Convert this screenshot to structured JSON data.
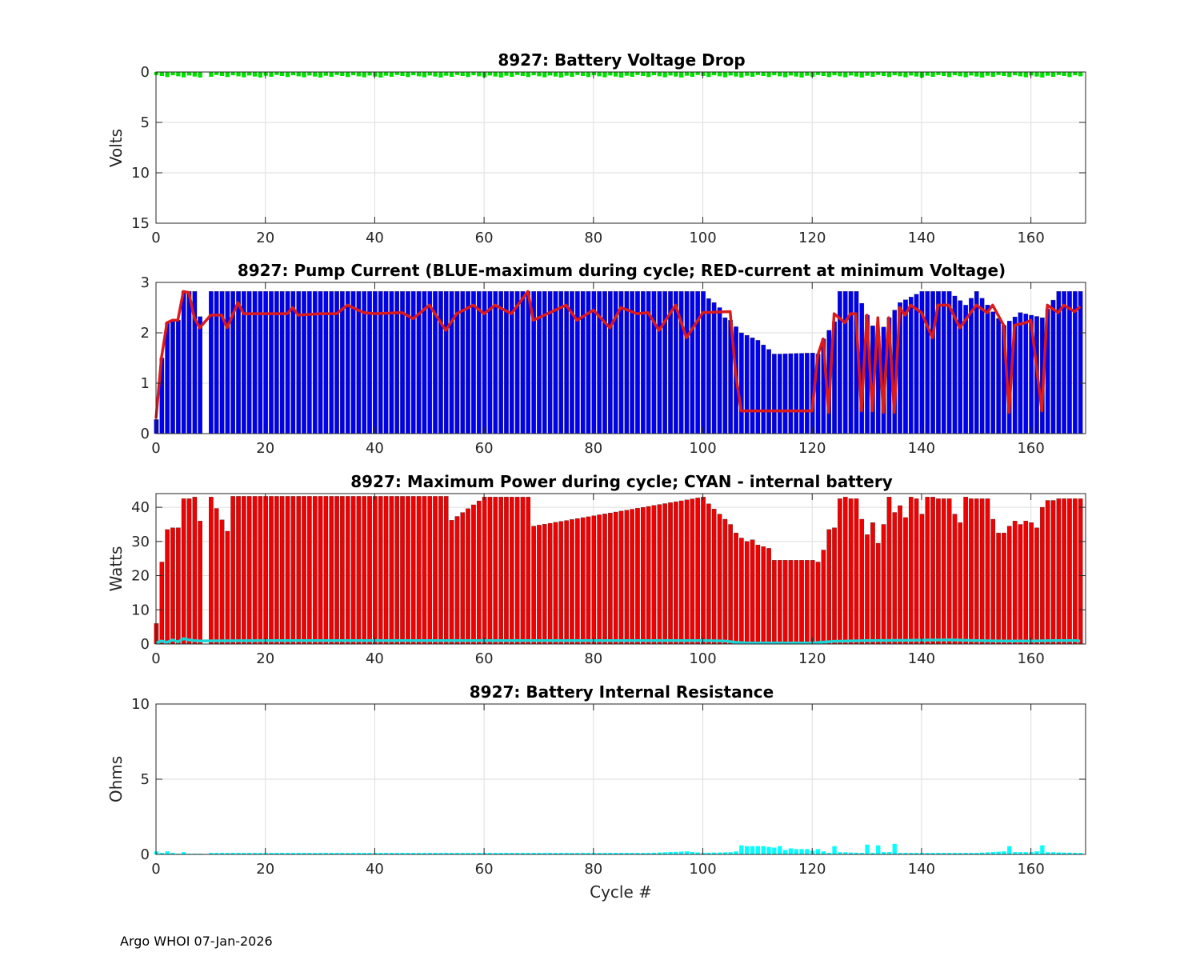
{
  "footer": "Argo WHOI 07-Jan-2026",
  "colors": {
    "green": "#00e000",
    "blue": "#0000f0",
    "red": "#f00000",
    "line_red": "#dd1a1a",
    "cyan": "#00ffff",
    "cyan_line": "#1ad6d6"
  },
  "chart_data": [
    {
      "type": "bar",
      "title": "8927: Battery Voltage Drop",
      "xlabel": "",
      "ylabel": "Volts",
      "xlim": [
        0,
        170
      ],
      "ylim": [
        0,
        15
      ],
      "y_reversed": true,
      "xticks": [
        0,
        20,
        40,
        60,
        80,
        100,
        120,
        140,
        160
      ],
      "yticks": [
        0,
        5,
        10,
        15
      ],
      "series": [
        {
          "name": "Voltage Drop",
          "color": "green",
          "x": [
            0,
            170
          ],
          "values": [
            0.35,
            0.35
          ],
          "notes": "nearly constant ~0.3-0.5 V across cycles 1-169; gap at cycle 9"
        }
      ]
    },
    {
      "type": "bar",
      "title": "8927: Pump Current (BLUE-maximum during cycle; RED-current at minimum Voltage)",
      "xlabel": "",
      "ylabel": "",
      "xlim": [
        0,
        170
      ],
      "ylim": [
        0,
        3
      ],
      "xticks": [
        0,
        20,
        40,
        60,
        80,
        100,
        120,
        140,
        160
      ],
      "yticks": [
        0,
        1,
        2,
        3
      ],
      "series": [
        {
          "name": "maximum during cycle",
          "color": "blue",
          "kind": "bar",
          "x": [
            0,
            1,
            2,
            3,
            4,
            5,
            6,
            7,
            8,
            10,
            20,
            60,
            100,
            101,
            102,
            103,
            104,
            105,
            106,
            107,
            110,
            113,
            114,
            120,
            121,
            122,
            124,
            125,
            128,
            130,
            132,
            134,
            136,
            140,
            145,
            148,
            150,
            155,
            158,
            162,
            164,
            165,
            169
          ],
          "values": [
            0.28,
            1.5,
            2.2,
            2.25,
            2.25,
            2.82,
            2.82,
            2.82,
            2.32,
            2.82,
            2.82,
            2.82,
            2.82,
            2.68,
            2.6,
            2.5,
            2.3,
            2.25,
            2.12,
            2.0,
            1.85,
            1.58,
            1.58,
            1.6,
            1.58,
            1.88,
            2.22,
            2.82,
            2.82,
            2.35,
            1.93,
            2.3,
            2.6,
            2.82,
            2.82,
            2.55,
            2.82,
            2.15,
            2.4,
            2.3,
            2.65,
            2.82,
            2.82
          ]
        },
        {
          "name": "current at minimum Voltage",
          "color": "red",
          "kind": "line",
          "x": [
            0,
            1,
            2,
            3,
            4,
            5,
            6,
            7,
            8,
            10,
            12,
            13,
            15,
            16,
            20,
            24,
            25,
            26,
            30,
            33,
            35,
            38,
            40,
            45,
            47,
            50,
            53,
            55,
            58,
            60,
            62,
            65,
            68,
            69,
            75,
            77,
            80,
            83,
            85,
            88,
            90,
            92,
            95,
            97,
            100,
            105,
            106,
            107,
            120,
            121,
            122,
            123,
            124,
            126,
            127,
            128,
            129,
            130,
            131,
            132,
            133,
            134,
            135,
            136,
            137,
            138,
            140,
            142,
            143,
            145,
            147,
            150,
            152,
            153,
            155,
            156,
            157,
            159,
            160,
            162,
            163,
            165,
            166,
            168,
            169
          ],
          "values": [
            0.3,
            1.5,
            2.2,
            2.25,
            2.25,
            2.82,
            2.8,
            2.3,
            2.1,
            2.35,
            2.35,
            2.1,
            2.6,
            2.38,
            2.38,
            2.38,
            2.5,
            2.35,
            2.38,
            2.38,
            2.55,
            2.4,
            2.38,
            2.4,
            2.28,
            2.55,
            2.05,
            2.38,
            2.55,
            2.38,
            2.55,
            2.38,
            2.82,
            2.25,
            2.55,
            2.25,
            2.45,
            2.1,
            2.5,
            2.38,
            2.4,
            2.05,
            2.55,
            1.9,
            2.4,
            2.42,
            1.2,
            0.45,
            0.45,
            1.55,
            1.88,
            0.42,
            2.38,
            2.2,
            2.38,
            2.38,
            0.45,
            2.35,
            0.45,
            2.3,
            0.42,
            2.3,
            0.42,
            2.5,
            2.35,
            2.55,
            2.4,
            1.9,
            2.55,
            2.55,
            2.1,
            2.55,
            2.4,
            2.55,
            2.15,
            0.42,
            2.15,
            2.2,
            2.25,
            0.45,
            2.55,
            2.4,
            2.55,
            2.42,
            2.52
          ]
        }
      ]
    },
    {
      "type": "bar",
      "title": "8927: Maximum Power during cycle; CYAN - internal battery",
      "xlabel": "",
      "ylabel": "Watts",
      "xlim": [
        0,
        170
      ],
      "ylim": [
        0,
        44
      ],
      "xticks": [
        0,
        20,
        40,
        60,
        80,
        100,
        120,
        140,
        160
      ],
      "yticks": [
        0,
        10,
        20,
        30,
        40
      ],
      "series": [
        {
          "name": "Maximum Power",
          "color": "red",
          "kind": "bar",
          "x": [
            0,
            1,
            2,
            3,
            4,
            5,
            6,
            7,
            8,
            10,
            13,
            14,
            20,
            53,
            54,
            60,
            68,
            69,
            100,
            101,
            102,
            103,
            104,
            105,
            106,
            107,
            108,
            109,
            110,
            111,
            112,
            113,
            114,
            120,
            121,
            122,
            123,
            124,
            125,
            126,
            127,
            128,
            129,
            130,
            131,
            132,
            133,
            134,
            135,
            136,
            137,
            138,
            139,
            140,
            141,
            142,
            143,
            144,
            145,
            146,
            147,
            148,
            149,
            150,
            151,
            152,
            153,
            154,
            155,
            156,
            157,
            158,
            159,
            160,
            161,
            162,
            163,
            164,
            165,
            166,
            167,
            168,
            169
          ],
          "values": [
            6,
            24,
            33.5,
            34,
            34,
            42.5,
            42.5,
            43,
            36,
            43,
            33,
            43.2,
            43.2,
            43.2,
            36.2,
            43,
            43,
            34.5,
            43,
            41,
            39.5,
            38,
            36.5,
            35,
            32.5,
            31,
            30,
            30.5,
            29,
            28.5,
            28,
            24.5,
            24.5,
            24.5,
            24,
            27.5,
            33.5,
            34,
            42.5,
            43,
            42.5,
            42.5,
            36.5,
            32,
            35.5,
            29.5,
            35,
            43,
            38.5,
            40.5,
            37,
            43,
            42.5,
            38,
            43,
            43,
            42.5,
            42.5,
            42.5,
            38,
            35.5,
            43,
            42.5,
            42.5,
            42.5,
            42.5,
            36.5,
            32.5,
            32.5,
            34.5,
            36,
            35,
            36,
            35.5,
            34,
            40,
            42,
            42,
            42.5,
            42.5,
            42.5,
            42.5,
            42.5
          ]
        },
        {
          "name": "internal battery",
          "color": "cyan",
          "kind": "line",
          "x": [
            0,
            1,
            2,
            3,
            4,
            5,
            6,
            7,
            8,
            20,
            40,
            60,
            80,
            100,
            104,
            106,
            108,
            120,
            124,
            130,
            140,
            145,
            150,
            155,
            160,
            164,
            168,
            169
          ],
          "values": [
            0.3,
            0.9,
            0.5,
            1.2,
            0.6,
            1.6,
            1.2,
            1.0,
            0.9,
            1.0,
            1.0,
            1.0,
            1.0,
            1.0,
            0.9,
            0.5,
            0.3,
            0.3,
            0.8,
            1.0,
            1.1,
            1.2,
            1.0,
            0.9,
            0.9,
            1.0,
            1.0,
            0.9
          ]
        }
      ]
    },
    {
      "type": "bar",
      "title": "8927: Battery Internal Resistance",
      "xlabel": "Cycle #",
      "ylabel": "Ohms",
      "xlim": [
        0,
        170
      ],
      "ylim": [
        0,
        10
      ],
      "xticks": [
        0,
        20,
        40,
        60,
        80,
        100,
        120,
        140,
        160
      ],
      "yticks": [
        0,
        5,
        10
      ],
      "series": [
        {
          "name": "Internal Resistance",
          "color": "cyan",
          "kind": "bar",
          "x": [
            0,
            1,
            2,
            3,
            4,
            5,
            6,
            7,
            8,
            10,
            20,
            40,
            60,
            80,
            90,
            97,
            100,
            105,
            106,
            107,
            108,
            109,
            110,
            111,
            112,
            113,
            114,
            115,
            116,
            117,
            118,
            119,
            120,
            121,
            122,
            123,
            124,
            125,
            129,
            130,
            131,
            132,
            133,
            134,
            135,
            136,
            140,
            150,
            155,
            156,
            157,
            160,
            161,
            162,
            163,
            169
          ],
          "values": [
            0.2,
            0.1,
            0.2,
            0.1,
            0.05,
            0.15,
            0.05,
            0.05,
            0.05,
            0.1,
            0.1,
            0.1,
            0.1,
            0.1,
            0.1,
            0.2,
            0.1,
            0.15,
            0.2,
            0.6,
            0.55,
            0.55,
            0.55,
            0.55,
            0.5,
            0.45,
            0.55,
            0.3,
            0.4,
            0.35,
            0.35,
            0.35,
            0.25,
            0.35,
            0.2,
            0.1,
            0.55,
            0.15,
            0.1,
            0.65,
            0.1,
            0.6,
            0.15,
            0.15,
            0.7,
            0.1,
            0.1,
            0.1,
            0.2,
            0.55,
            0.15,
            0.15,
            0.2,
            0.6,
            0.15,
            0.1
          ]
        }
      ]
    }
  ]
}
